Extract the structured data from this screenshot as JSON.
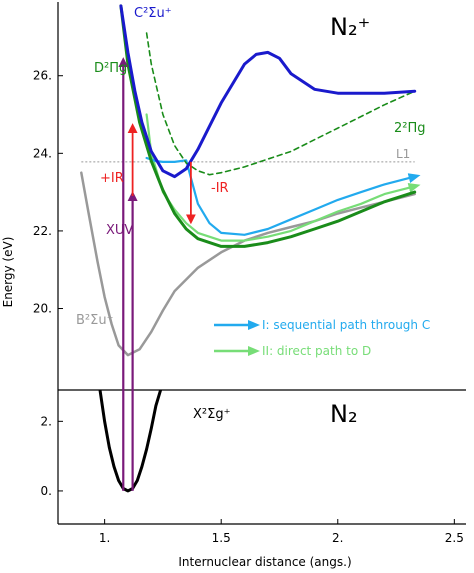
{
  "colors": {
    "C_state": "#1a1acc",
    "D_state": "#1a8c1a",
    "D_dashed": "#1a8c1a",
    "B_state": "#999999",
    "X_state": "#000000",
    "L1_line": "#999999",
    "XUV_arrow": "#7a1a7a",
    "IR_arrow": "#ee2222",
    "path_I": "#22aaee",
    "path_II": "#77dd77"
  },
  "chart_data": [
    {
      "type": "line",
      "title": "N2+",
      "ylabel": "Energy (eV)",
      "ylim": [
        17.9,
        27.9
      ],
      "xlim": [
        0.8,
        2.55
      ],
      "yticks": [
        20.0,
        22.0,
        24.0,
        26.0
      ],
      "ytick_labels": [
        "20.",
        "22.",
        "24.",
        "26."
      ],
      "grid": false,
      "L1": {
        "label": "L1",
        "y": 23.78,
        "x": [
          0.9,
          2.33
        ]
      },
      "series": [
        {
          "key": "C",
          "label": "C²Σu⁺",
          "style": "solid",
          "x": [
            1.07,
            1.1,
            1.13,
            1.16,
            1.2,
            1.25,
            1.3,
            1.35,
            1.4,
            1.5,
            1.6,
            1.65,
            1.7,
            1.75,
            1.8,
            1.9,
            2.0,
            2.1,
            2.2,
            2.33
          ],
          "y": [
            27.8,
            26.6,
            25.6,
            24.8,
            24.05,
            23.55,
            23.4,
            23.6,
            24.1,
            25.3,
            26.3,
            26.55,
            26.6,
            26.45,
            26.05,
            25.65,
            25.55,
            25.55,
            25.55,
            25.6
          ]
        },
        {
          "key": "D",
          "label": "D²Πg",
          "style": "solid",
          "x": [
            1.07,
            1.1,
            1.15,
            1.2,
            1.25,
            1.3,
            1.35,
            1.4,
            1.5,
            1.6,
            1.7,
            1.8,
            1.9,
            2.0,
            2.1,
            2.2,
            2.33
          ],
          "y": [
            27.8,
            26.3,
            24.8,
            23.8,
            23.05,
            22.45,
            22.05,
            21.8,
            21.6,
            21.6,
            21.7,
            21.85,
            22.05,
            22.25,
            22.5,
            22.75,
            23.0
          ]
        },
        {
          "key": "D_dashed",
          "label": "2²Πg",
          "style": "dashed",
          "x": [
            1.18,
            1.2,
            1.25,
            1.3,
            1.35,
            1.4,
            1.45,
            1.5,
            1.6,
            1.7,
            1.8,
            1.9,
            2.0,
            2.1,
            2.2,
            2.33
          ],
          "y": [
            27.1,
            26.3,
            25.0,
            24.2,
            23.75,
            23.55,
            23.45,
            23.5,
            23.65,
            23.85,
            24.05,
            24.35,
            24.65,
            24.95,
            25.25,
            25.6
          ]
        },
        {
          "key": "B",
          "label": "B²Σu⁺",
          "style": "solid",
          "x": [
            0.9,
            0.93,
            0.97,
            1.0,
            1.03,
            1.06,
            1.1,
            1.15,
            1.2,
            1.25,
            1.3,
            1.4,
            1.5,
            1.6,
            1.7,
            1.8,
            1.9,
            2.0,
            2.1,
            2.2,
            2.33
          ],
          "y": [
            23.5,
            22.5,
            21.2,
            20.3,
            19.6,
            19.05,
            18.8,
            18.95,
            19.4,
            19.95,
            20.45,
            21.05,
            21.45,
            21.75,
            21.95,
            22.1,
            22.25,
            22.45,
            22.6,
            22.75,
            22.95
          ]
        },
        {
          "key": "path_I",
          "label": "I: sequential path through C",
          "style": "arrow",
          "x": [
            1.18,
            1.22,
            1.25,
            1.3,
            1.35,
            1.4,
            1.45,
            1.5,
            1.6,
            1.7,
            1.8,
            1.9,
            2.0,
            2.1,
            2.2,
            2.33
          ],
          "y": [
            23.88,
            23.8,
            23.78,
            23.78,
            23.82,
            22.7,
            22.2,
            21.95,
            21.9,
            22.05,
            22.3,
            22.55,
            22.8,
            23.0,
            23.2,
            23.4
          ]
        },
        {
          "key": "path_II",
          "label": "II: direct path to D",
          "style": "arrow",
          "x": [
            1.18,
            1.2,
            1.25,
            1.3,
            1.35,
            1.4,
            1.5,
            1.6,
            1.7,
            1.8,
            1.9,
            2.0,
            2.1,
            2.2,
            2.33
          ],
          "y": [
            25.0,
            24.0,
            23.0,
            22.55,
            22.2,
            21.95,
            21.75,
            21.75,
            21.85,
            22.0,
            22.25,
            22.5,
            22.7,
            22.95,
            23.15
          ]
        }
      ],
      "annotations": {
        "XUV": "XUV",
        "plus_IR": "+IR",
        "minus_IR": "-IR",
        "C_label": "C²Σu⁺",
        "D_label": "D²Πg",
        "two_Pi_label": "2²Πg",
        "B_label": "B²Σu⁺"
      },
      "transitions": [
        {
          "name": "XUV",
          "kind": "XUV",
          "x": 1.08,
          "y_from": 0.0,
          "y_to": 26.35
        },
        {
          "name": "XUV",
          "kind": "XUV",
          "x": 1.12,
          "y_from": 0.0,
          "y_to": 22.9
        },
        {
          "name": "+IR",
          "kind": "IR",
          "x": 1.12,
          "y_from": 22.9,
          "y_to": 24.65
        },
        {
          "name": "-IR",
          "kind": "IR",
          "x": 1.37,
          "y_from": 23.78,
          "y_to": 22.3
        }
      ]
    },
    {
      "type": "line",
      "title": "N2",
      "ylim": [
        -0.95,
        2.9
      ],
      "yticks": [
        0.0,
        2.0
      ],
      "ytick_labels": [
        "0.",
        "2."
      ],
      "xlabel": "Internuclear distance (angs.)",
      "xticks": [
        1.0,
        1.5,
        2.0,
        2.5
      ],
      "xtick_labels": [
        "1.",
        "1.5",
        "2.",
        "2.5"
      ],
      "series": [
        {
          "key": "X",
          "label": "X²Σg⁺",
          "style": "solid",
          "x": [
            0.98,
            1.0,
            1.02,
            1.04,
            1.06,
            1.08,
            1.1,
            1.12,
            1.14,
            1.16,
            1.18,
            1.2,
            1.22,
            1.24
          ],
          "y": [
            2.9,
            2.0,
            1.25,
            0.7,
            0.3,
            0.07,
            0.0,
            0.07,
            0.3,
            0.7,
            1.2,
            1.8,
            2.45,
            2.9
          ]
        }
      ]
    }
  ],
  "legend": [
    {
      "label": "I: sequential path through C",
      "series": "path_I"
    },
    {
      "label": "II: direct path to D",
      "series": "path_II"
    }
  ],
  "texts": {
    "upper_title": "N₂⁺",
    "lower_title": "N₂",
    "x_state_label": "X²Σg⁺",
    "L1": "L1"
  }
}
